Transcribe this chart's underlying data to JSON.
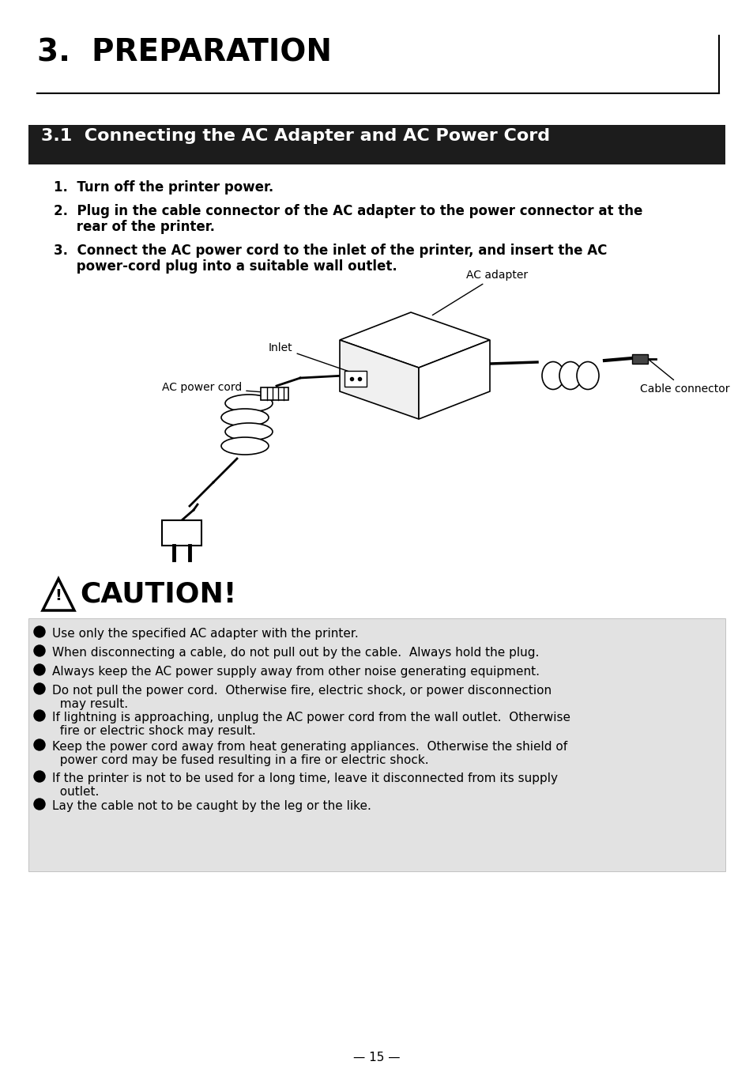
{
  "bg_color": "#ffffff",
  "title_main": "3.  PREPARATION",
  "section_title": "3.1  Connecting the AC Adapter and AC Power Cord",
  "step1": "1.  Turn off the printer power.",
  "step2_line1": "2.  Plug in the cable connector of the AC adapter to the power connector at the",
  "step2_line2": "     rear of the printer.",
  "step3_line1": "3.  Connect the AC power cord to the inlet of the printer, and insert the AC",
  "step3_line2": "     power-cord plug into a suitable wall outlet.",
  "label_ac_adapter": "AC adapter",
  "label_inlet": "Inlet",
  "label_ac_power_cord": "AC power cord",
  "label_cable_connector": "Cable connector",
  "caution_title": "CAUTION!",
  "caution_items": [
    "Use only the specified AC adapter with the printer.",
    "When disconnecting a cable, do not pull out by the cable.  Always hold the plug.",
    "Always keep the AC power supply away from other noise generating equipment.",
    "Do not pull the power cord.  Otherwise fire, electric shock, or power disconnection\n  may result.",
    "If lightning is approaching, unplug the AC power cord from the wall outlet.  Otherwise\n  fire or electric shock may result.",
    "Keep the power cord away from heat generating appliances.  Otherwise the shield of\n  power cord may be fused resulting in a fire or electric shock.",
    "If the printer is not to be used for a long time, leave it disconnected from its supply\n  outlet.",
    "Lay the cable not to be caught by the leg or the like."
  ],
  "footer_text": "— 15 —",
  "header_bg": "#1c1c1c",
  "header_fg": "#ffffff",
  "caution_bg": "#e2e2e2",
  "title_fontsize": 28,
  "section_fontsize": 16,
  "step_fontsize": 12,
  "caution_title_fontsize": 26,
  "caution_item_fontsize": 11,
  "footer_fontsize": 11
}
